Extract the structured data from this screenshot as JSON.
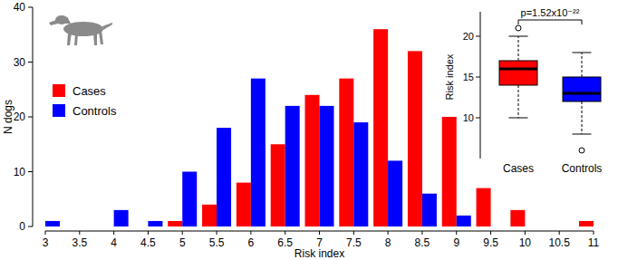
{
  "chart_data": [
    {
      "type": "bar",
      "x_label": "Risk index",
      "y_label": "N dogs",
      "categories": [
        "3",
        "3.5",
        "4",
        "4.5",
        "5",
        "5.5",
        "6",
        "6.5",
        "7",
        "7.5",
        "8",
        "8.5",
        "9",
        "9.5",
        "10",
        "10.5",
        "11"
      ],
      "series": [
        {
          "name": "Cases",
          "color": "#ff0000",
          "values": [
            0,
            0,
            0,
            0,
            1,
            4,
            8,
            15,
            24,
            27,
            36,
            32,
            20,
            7,
            3,
            0,
            1
          ]
        },
        {
          "name": "Controls",
          "color": "#0000ff",
          "values": [
            1,
            0,
            3,
            1,
            10,
            18,
            27,
            22,
            22,
            19,
            12,
            6,
            2,
            0,
            0,
            0,
            0
          ]
        }
      ],
      "ylim": [
        0,
        40
      ],
      "yticks": [
        0,
        10,
        20,
        30,
        40
      ],
      "legend": "left"
    },
    {
      "type": "box",
      "title": "p=1.52x10⁻²²",
      "y_label": "Risk index",
      "categories": [
        "Cases",
        "Controls"
      ],
      "colors": [
        "#ff0000",
        "#0000ff"
      ],
      "boxes": [
        {
          "min": 10,
          "q1": 14,
          "median": 16,
          "q3": 17,
          "max": 20,
          "outliers": [
            21
          ]
        },
        {
          "min": 8,
          "q1": 12,
          "median": 13,
          "q3": 15,
          "max": 18,
          "outliers": [
            6
          ]
        }
      ],
      "ylim": [
        5,
        23
      ],
      "yticks": [
        10,
        15,
        20
      ]
    }
  ]
}
